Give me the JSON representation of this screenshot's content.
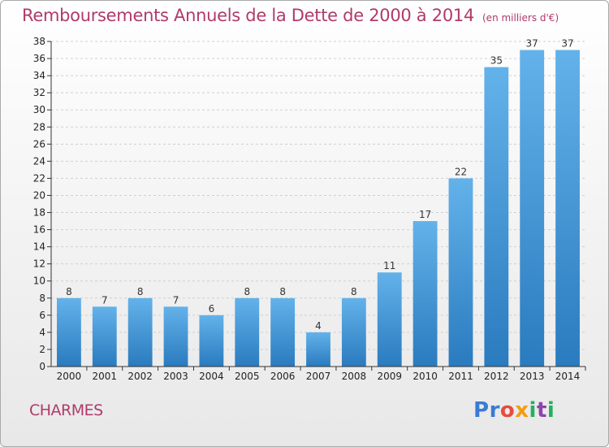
{
  "header": {
    "title": "Remboursements Annuels de la Dette de 2000 à 2014",
    "unit": "(en milliers d'€)"
  },
  "footer": {
    "city": "CHARMES",
    "logo": {
      "letters": [
        "P",
        "r",
        "o",
        "x",
        "i",
        "t",
        "i"
      ],
      "colors": [
        "#3a7bd5",
        "#3a7bd5",
        "#e74c3c",
        "#f39c12",
        "#27ae60",
        "#8e44ad",
        "#27ae60"
      ]
    }
  },
  "colors": {
    "title": "#b03a6a",
    "bar_light": "#63b2ea",
    "bar_dark": "#2a7bbf",
    "grid": "#cfcfcf"
  },
  "chart_data": {
    "type": "bar",
    "title": "Remboursements Annuels de la Dette de 2000 à 2014",
    "subtitle": "(en milliers d'€)",
    "xlabel": "",
    "ylabel": "",
    "categories": [
      "2000",
      "2001",
      "2002",
      "2003",
      "2004",
      "2005",
      "2006",
      "2007",
      "2008",
      "2009",
      "2010",
      "2011",
      "2012",
      "2013",
      "2014"
    ],
    "values": [
      8,
      7,
      8,
      7,
      6,
      8,
      8,
      4,
      8,
      11,
      17,
      22,
      35,
      37,
      37
    ],
    "ylim": [
      0,
      38
    ],
    "yticks": [
      0,
      2,
      4,
      6,
      8,
      10,
      12,
      14,
      16,
      18,
      20,
      22,
      24,
      26,
      28,
      30,
      32,
      34,
      36,
      38
    ],
    "grid": true,
    "data_labels": true
  }
}
